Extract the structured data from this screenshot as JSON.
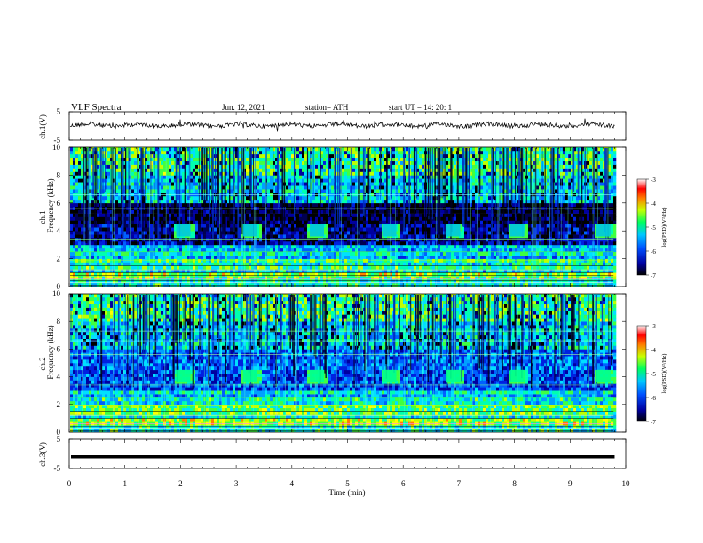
{
  "header": {
    "title": "VLF  Spectra",
    "date": "Jun. 12, 2021",
    "station": "station= ATH",
    "start_ut": "start  UT  =    14: 20: 1"
  },
  "chart_data": [
    {
      "type": "line",
      "panel": "ch1-waveform",
      "ylabel": "ch.1(V)",
      "ylim": [
        -5,
        5
      ],
      "yticks": [
        "5",
        "-5"
      ],
      "xlim": [
        0,
        10
      ],
      "series": [
        {
          "values_desc": "noisy signal centered near 0 V"
        }
      ]
    },
    {
      "type": "heatmap",
      "panel": "ch1-spectrogram",
      "ylabel": "ch.1\nFrequency  (kHz)",
      "ylim": [
        0,
        10
      ],
      "yticks": [
        "0",
        "2",
        "4",
        "6",
        "8",
        "10"
      ],
      "xlim": [
        0,
        10
      ],
      "bursts_min": [
        2.05,
        3.25,
        4.45,
        5.75,
        6.9,
        8.05,
        9.6
      ],
      "colorbar": {
        "label": "log(PSD)(V²/Hz)",
        "ticks": [
          "-3",
          "-4",
          "-5",
          "-6",
          "-7"
        ],
        "range": [
          -7,
          -3
        ]
      }
    },
    {
      "type": "heatmap",
      "panel": "ch2-spectrogram",
      "ylabel": "ch.2\nFrequency  (kHz)",
      "ylim": [
        0,
        10
      ],
      "yticks": [
        "0",
        "2",
        "4",
        "6",
        "8",
        "10"
      ],
      "xlim": [
        0,
        10
      ],
      "bursts_min": [
        2.05,
        3.25,
        4.45,
        5.75,
        6.9,
        8.05,
        9.6
      ],
      "colorbar": {
        "label": "log(PSD)(V²/Hz)",
        "ticks": [
          "-3",
          "-4",
          "-5",
          "-6",
          "-7"
        ],
        "range": [
          -7,
          -3
        ]
      }
    },
    {
      "type": "line",
      "panel": "ch3-waveform",
      "ylabel": "ch.3(V)",
      "ylim": [
        -5,
        5
      ],
      "yticks": [
        "5",
        "-5"
      ],
      "xlim": [
        0,
        10
      ],
      "series": [
        {
          "values_desc": "flat near -1 V"
        }
      ]
    }
  ],
  "xaxis": {
    "label": "Time  (min)",
    "ticks": [
      "0",
      "1",
      "2",
      "3",
      "4",
      "5",
      "6",
      "7",
      "8",
      "9",
      "10"
    ]
  }
}
